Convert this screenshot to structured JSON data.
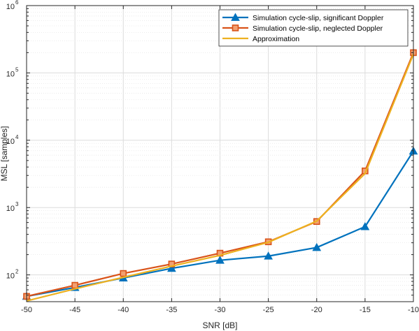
{
  "chart_data": {
    "type": "line",
    "title": "",
    "xlabel": "SNR [dB]",
    "ylabel": "MSL [samples]",
    "xlim": [
      -50,
      -10
    ],
    "ylim": [
      40,
      1000000
    ],
    "yscale": "log",
    "grid": true,
    "minor_grid": true,
    "legend_position": "top-right",
    "x": [
      -50,
      -45,
      -40,
      -35,
      -30,
      -25,
      -20,
      -15,
      -10
    ],
    "x_ticks": [
      -50,
      -45,
      -40,
      -35,
      -30,
      -25,
      -20,
      -15,
      -10
    ],
    "x_tick_labels": [
      "-50",
      "-45",
      "-40",
      "-35",
      "-30",
      "-25",
      "-20",
      "-15",
      "-10"
    ],
    "y_ticks": [
      {
        "value": 100,
        "base": "10",
        "exp": "2"
      },
      {
        "value": 1000,
        "base": "10",
        "exp": "3"
      },
      {
        "value": 10000,
        "base": "10",
        "exp": "4"
      },
      {
        "value": 100000,
        "base": "10",
        "exp": "5"
      },
      {
        "value": 1000000,
        "base": "10",
        "exp": "6"
      }
    ],
    "series": [
      {
        "name": "Simulation cycle-slip, significant Doppler",
        "color": "#0072BD",
        "marker": "triangle",
        "values": [
          48,
          65,
          90,
          125,
          165,
          190,
          255,
          520,
          6900
        ]
      },
      {
        "name": "Simulation cycle-slip, neglected Doppler",
        "color": "#D95319",
        "marker": "square",
        "values": [
          48,
          70,
          105,
          145,
          210,
          310,
          620,
          3500,
          200000
        ]
      },
      {
        "name": "Approximation",
        "color": "#EDB120",
        "marker": "none",
        "values": [
          41,
          62,
          92,
          135,
          195,
          305,
          630,
          3200,
          190000
        ]
      }
    ]
  }
}
